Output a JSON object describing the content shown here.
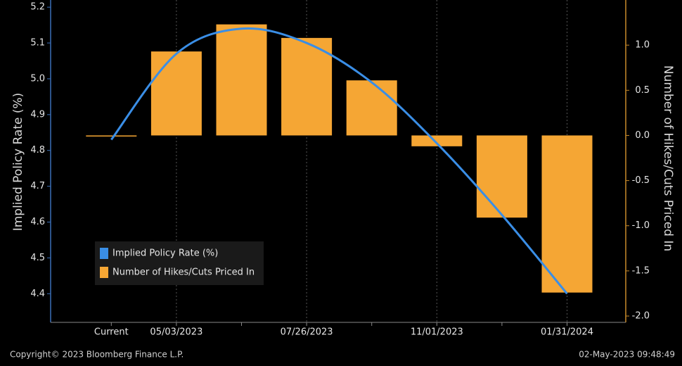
{
  "chart_data": {
    "type": "combo",
    "y_label": "Implied Policy Rate (%)",
    "y2_label": "Number of Hikes/Cuts Priced In",
    "categories": [
      "Current",
      "05/03/2023",
      null,
      "07/26/2023",
      null,
      "11/01/2023",
      null,
      "01/31/2024"
    ],
    "series": [
      {
        "name": "Implied Policy Rate (%)",
        "type": "line",
        "color": "#3a8ee6",
        "axis": "y",
        "values": [
          4.83,
          5.07,
          5.14,
          5.1,
          4.99,
          4.82,
          4.62,
          4.4
        ]
      },
      {
        "name": "Number of Hikes/Cuts Priced In",
        "type": "bar",
        "color": "#f5a634",
        "axis": "y2",
        "values": [
          0.0,
          0.93,
          1.23,
          1.08,
          0.61,
          -0.12,
          -0.91,
          -1.74
        ]
      }
    ],
    "ylim": [
      4.32,
      5.22
    ],
    "yticks": [
      4.4,
      4.5,
      4.6,
      4.7,
      4.8,
      4.9,
      {
        "value": 5,
        "label": "5.0"
      },
      5.1,
      5.2
    ],
    "y2lim": [
      -2.07,
      1.5
    ],
    "y2ticks": [
      {
        "value": -2,
        "label": "-2.0"
      },
      -1.5,
      {
        "value": -1,
        "label": "-1.0"
      },
      -0.5,
      {
        "value": 0,
        "label": "0.0"
      },
      0.5,
      {
        "value": 1,
        "label": "1.0"
      }
    ],
    "legend": "lower left",
    "source": "Copyright© 2023 Bloomberg Finance L.P.",
    "timestamp": "02-May-2023 09:48:49"
  }
}
